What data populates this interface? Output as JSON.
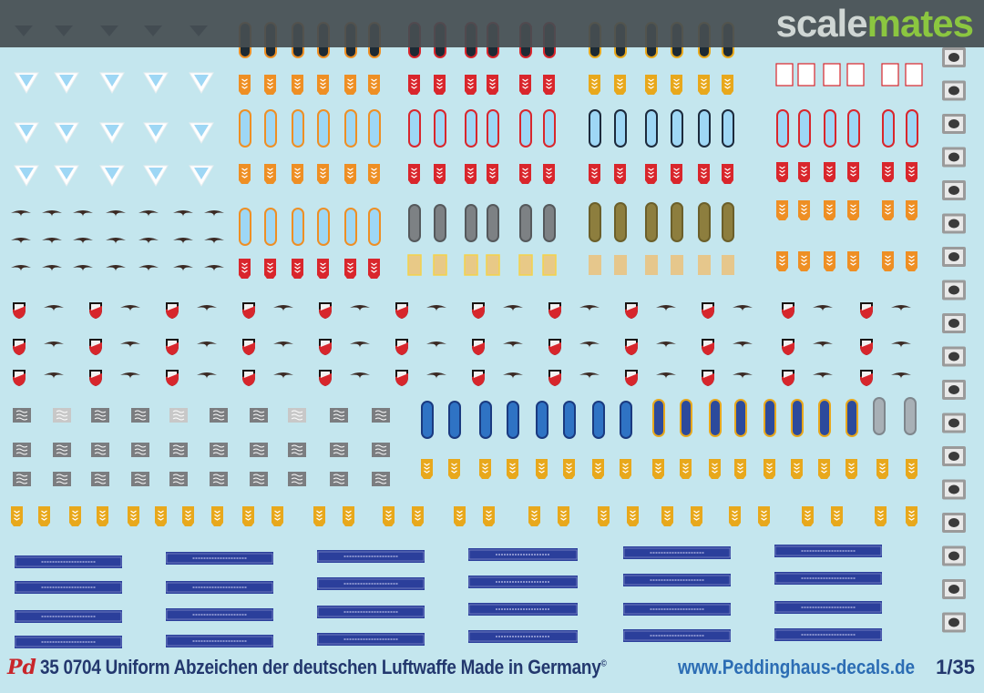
{
  "watermark": {
    "part1": "scale",
    "part2": "mates"
  },
  "footer": {
    "brand_mark": "Pd",
    "product": "35 0704 Uniform Abzeichen der deutschen Luftwaffe Made in Germany",
    "copyright_mark": "©",
    "website": "www.Peddinghaus-decals.de",
    "scale": "1/35"
  },
  "decal_types": [
    "chevron",
    "eagle",
    "collar-tab",
    "shoulder-strap",
    "shield",
    "sleeve-rank",
    "cuff-title",
    "roundel"
  ],
  "colors": {
    "background": "#c4e6ee",
    "red": "#d9262c",
    "yellow": "#e8a81c",
    "orange": "#ee8f24",
    "light_blue": "#9ed7f5",
    "dark_blue": "#2b3f9b",
    "gray": "#7b7d80",
    "olive": "#8d7e3e",
    "eagle": "#3b2a24"
  }
}
